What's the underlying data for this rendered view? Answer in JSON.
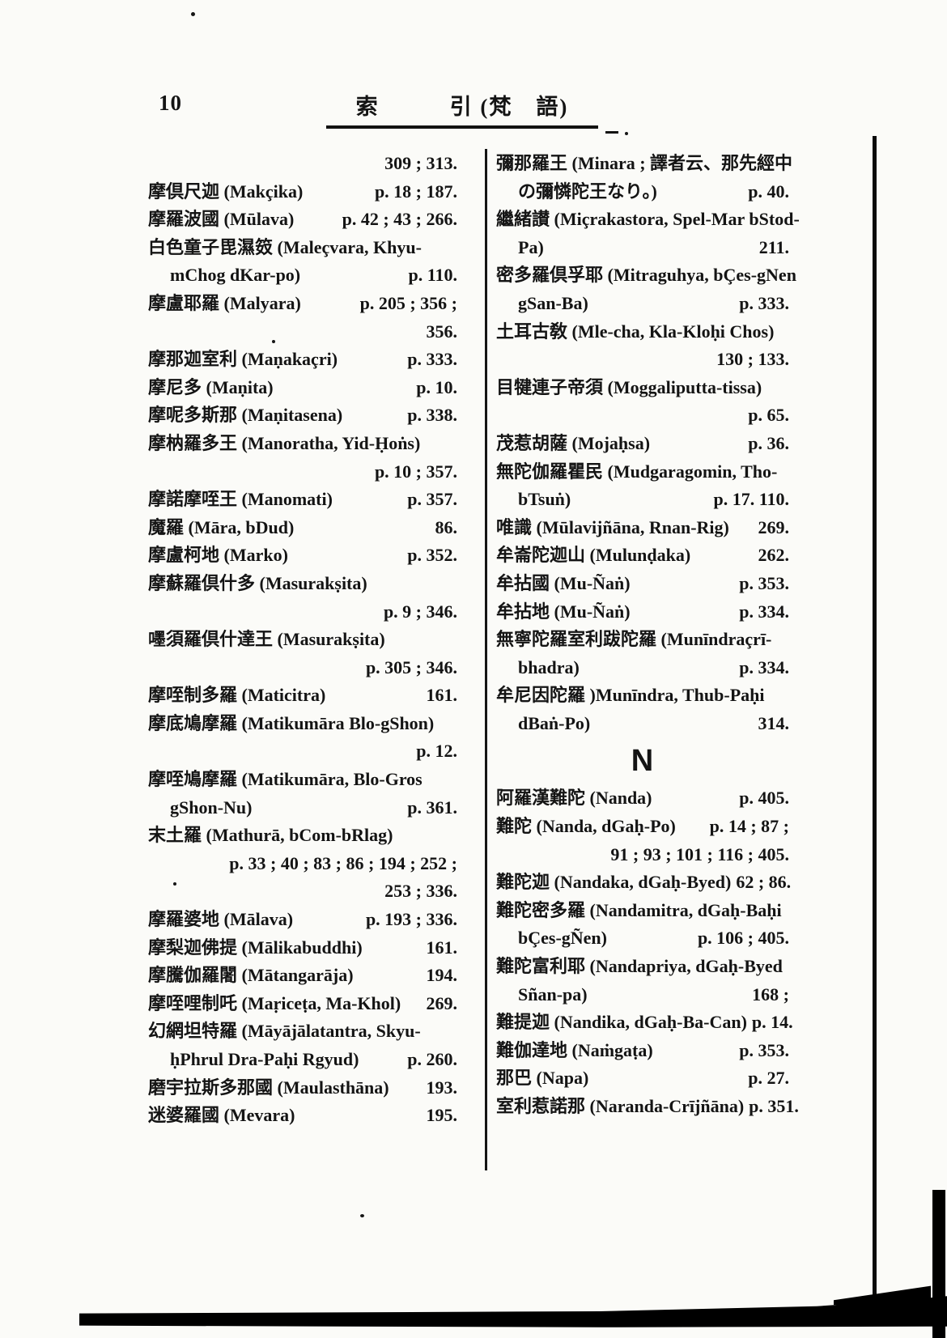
{
  "page": {
    "number": "10",
    "header_title": "索　　　引 (梵　語)"
  },
  "ink_color": "#141414",
  "columns": {
    "left": {
      "lines": [
        {
          "p": "309 ; 313."
        },
        {
          "t": "摩倶尺迦 (Makçika)",
          "p": "p. 18 ; 187."
        },
        {
          "t": "摩羅波國 (Mūlava)",
          "p": "p. 42 ; 43 ; 266."
        },
        {
          "t": "白色童子毘濕笯 (Maleçvara, Khyu-"
        },
        {
          "t": "mChog dKar-po)",
          "p": "p. 110.",
          "indent": 1
        },
        {
          "t": "摩盧耶羅 (Malyara)",
          "p": "p. 205 ; 356 ;"
        },
        {
          "p": "356."
        },
        {
          "t": "摩那迦室利 (Maṇakaçri)",
          "p": "p. 333."
        },
        {
          "t": "摩尼多 (Maṇita)",
          "p": "p. 10."
        },
        {
          "t": "摩呢多斯那 (Maṇitasena)",
          "p": "p. 338."
        },
        {
          "t": "摩枘羅多王 (Manoratha, Yid-Ḥoṅs)"
        },
        {
          "p": "p. 10 ; 357."
        },
        {
          "t": "摩諾摩咥王 (Manomati)",
          "p": "p. 357."
        },
        {
          "t": "魔羅 (Māra, bDud)",
          "p": "86."
        },
        {
          "t": "摩盧柯地 (Marko)",
          "p": "p. 352."
        },
        {
          "t": "摩蘇羅倶什多 (Masurakṣita)"
        },
        {
          "p": "p. 9 ; 346."
        },
        {
          "t": "嚜須羅倶什達王 (Masurakṣita)"
        },
        {
          "p": "p. 305 ; 346."
        },
        {
          "t": "摩咥制多羅 (Maticitra)",
          "p": "161."
        },
        {
          "t": "摩底鳩摩羅 (Matikumāra Blo-gShon)"
        },
        {
          "p": "p. 12."
        },
        {
          "t": "摩咥鳩摩羅 (Matikumāra, Blo-Gros"
        },
        {
          "t": "gShon-Nu)",
          "p": "p. 361.",
          "indent": 1
        },
        {
          "t": "末土羅 (Mathurā, bCom-bRlag)"
        },
        {
          "p": "p. 33 ; 40 ; 83 ; 86 ; 194 ; 252 ;"
        },
        {
          "p": "253 ; 336."
        },
        {
          "t": "摩羅婆地 (Mālava)",
          "p": "p. 193 ; 336."
        },
        {
          "t": "摩梨迦佛提 (Mālikabuddhi)",
          "p": "161."
        },
        {
          "t": "摩騰伽羅闍 (Mātangarāja)",
          "p": "194."
        },
        {
          "t": "摩咥哩制吒 (Maṛiceṭa, Ma-Khol)",
          "p": "269."
        },
        {
          "t": "幻網坦特羅 (Māyājālatantra, Skyu-"
        },
        {
          "t": "ḥPhrul Dra-Paḥi Rgyud)",
          "p": "p. 260.",
          "indent": 1
        },
        {
          "t": "磨宇拉斯多那國 (Maulasthāna)",
          "p": "193."
        },
        {
          "t": "迷婆羅國 (Mevara)",
          "p": "195."
        }
      ]
    },
    "right": {
      "lines": [
        {
          "t": "彌那羅王 (Minara ; 譯者云、那先經中"
        },
        {
          "t": "の彌憐陀王なり。)",
          "p": "p. 40.",
          "indent": 1
        },
        {
          "t": "繼緒讃 (Miçrakastora, Spel-Mar bStod-"
        },
        {
          "t": "Pa)",
          "p": "211.",
          "indent": 1
        },
        {
          "t": "密多羅倶孚耶 (Mitraguhya, bÇes-gNen"
        },
        {
          "t": "gSan-Ba)",
          "p": "p. 333.",
          "indent": 1
        },
        {
          "t": "土耳古敎 (Mle-cha, Kla-Kloḥi Chos)"
        },
        {
          "p": "130 ; 133."
        },
        {
          "t": "目犍連子帝須 (Moggaliputta-tissa)"
        },
        {
          "p": "p. 65."
        },
        {
          "t": "茂惹胡薩 (Mojaḥsa)",
          "p": "p. 36."
        },
        {
          "t": "無陀伽羅瞿民 (Mudgaragomin, Tho-"
        },
        {
          "t": "bTsuṅ)",
          "p": "p. 17. 110.",
          "indent": 1
        },
        {
          "t": "唯識 (Mūlavijñāna, Rnan-Rig)",
          "p": "269."
        },
        {
          "t": "牟崙陀迦山 (Mulunḍaka)",
          "p": "262."
        },
        {
          "t": "牟拈國 (Mu-Ñaṅ)",
          "p": "p. 353."
        },
        {
          "t": "牟拈地 (Mu-Ñaṅ)",
          "p": "p. 334."
        },
        {
          "t": "無寧陀羅室利跋陀羅 (Munīndraçrī-"
        },
        {
          "t": "bhadra)",
          "p": "p. 334.",
          "indent": 1
        },
        {
          "t": "牟尼因陀羅 )Munīndra, Thub-Paḥi"
        },
        {
          "t": "dBaṅ-Po)",
          "p": "314.",
          "indent": 1
        },
        {
          "section": "N"
        },
        {
          "t": "阿羅漢難陀 (Nanda)",
          "p": "p. 405."
        },
        {
          "t": "難陀 (Nanda, dGaḥ-Po)",
          "p": "p. 14 ; 87 ;"
        },
        {
          "p": "91 ; 93 ; 101 ; 116 ; 405."
        },
        {
          "t": "難陀迦 (Nandaka, dGaḥ-Byed)",
          "p": "62 ; 86."
        },
        {
          "t": "難陀密多羅 (Nandamitra, dGaḥ-Baḥi"
        },
        {
          "t": "bÇes-gÑen)",
          "p": "p. 106 ; 405.",
          "indent": 1
        },
        {
          "t": "難陀富利耶 (Nandapriya, dGaḥ-Byed"
        },
        {
          "t": "Sñan-pa)",
          "p": "168 ;",
          "indent": 1
        },
        {
          "t": "難提迦 (Nandika, dGaḥ-Ba-Can)",
          "p": "p. 14."
        },
        {
          "t": "難伽達地 (Naṁgaṭa)",
          "p": "p. 353."
        },
        {
          "t": "那巴 (Napa)",
          "p": "p. 27."
        },
        {
          "t": "室利惹諾那 (Naranda-Crījñāna)",
          "p": "p. 351."
        }
      ]
    }
  }
}
